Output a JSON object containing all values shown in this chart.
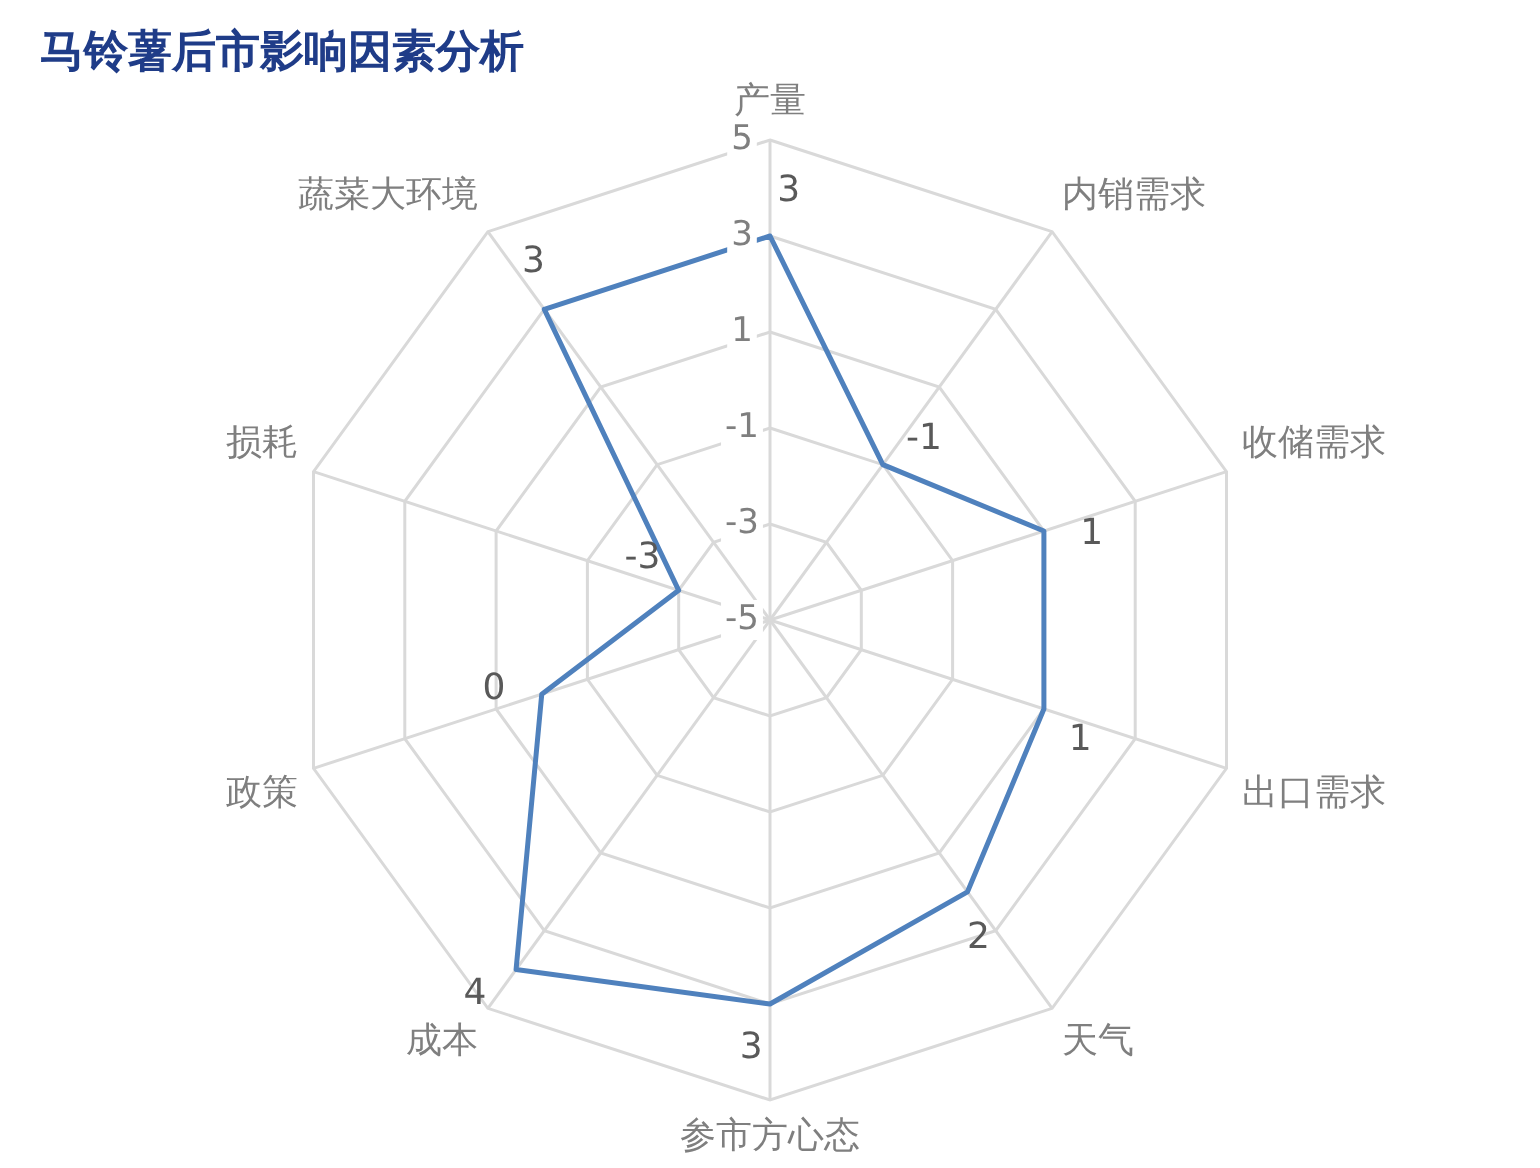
{
  "chart_data": {
    "type": "radar",
    "title": "马铃薯后市影响因素分析",
    "categories": [
      "产量",
      "内销需求",
      "收储需求",
      "出口需求",
      "天气",
      "参市方心态",
      "成本",
      "政策",
      "损耗",
      "蔬菜大环境"
    ],
    "series": [
      {
        "color": "#4f81bd",
        "values": [
          3,
          -1,
          1,
          1,
          2,
          3,
          4,
          0,
          -3,
          3
        ]
      }
    ],
    "ylim": [
      -5,
      5
    ],
    "yticks": [
      -5,
      -3,
      -1,
      1,
      3,
      5
    ],
    "grid": true,
    "marker": "none",
    "data_labels": true
  }
}
